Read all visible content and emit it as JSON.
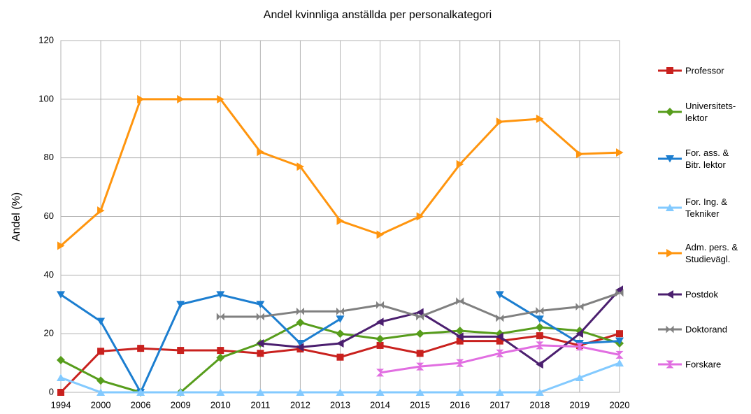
{
  "chart_data": {
    "type": "line",
    "title": "Andel kvinnliga anställda per personalkategori",
    "ylabel": "Andel (%)",
    "categories": [
      "1994",
      "2000",
      "2006",
      "2009",
      "2010",
      "2011",
      "2012",
      "2013",
      "2014",
      "2015",
      "2016",
      "2017",
      "2018",
      "2019",
      "2020"
    ],
    "ylim": [
      0,
      120
    ],
    "yticks": [
      0,
      20,
      40,
      60,
      80,
      100,
      120
    ],
    "grid": true,
    "legend": "right",
    "series": [
      {
        "name": "Professor",
        "color": "#c9211e",
        "marker": "square",
        "values": [
          0,
          14,
          15,
          14.3,
          14.3,
          13.3,
          14.8,
          12,
          16,
          13.3,
          17.5,
          17.5,
          19.3,
          16,
          20
        ]
      },
      {
        "name": "Universitets-\nlektor",
        "color": "#579d1c",
        "marker": "diamond",
        "values": [
          11,
          4,
          0,
          0,
          11.8,
          16.7,
          23.8,
          20,
          18.2,
          20,
          21,
          20,
          22.2,
          21,
          16.7
        ]
      },
      {
        "name": "For. ass. &\nBitr. lektor",
        "color": "#1c7ed0",
        "marker": "down",
        "values": [
          33.3,
          24.2,
          0,
          30,
          33.3,
          30,
          16.7,
          25,
          null,
          null,
          null,
          33.3,
          25,
          16.7,
          17.5
        ]
      },
      {
        "name": "For. Ing. &\nTekniker",
        "color": "#83caff",
        "marker": "up",
        "values": [
          5,
          0,
          0,
          0,
          0,
          0,
          0,
          0,
          0,
          0,
          0,
          0,
          0,
          5,
          10
        ]
      },
      {
        "name": "Adm. pers. &\nStudievägl.",
        "color": "#ff950e",
        "marker": "right",
        "values": [
          50,
          62,
          100,
          100,
          100,
          82,
          77,
          58.5,
          53.8,
          60,
          77.8,
          92.3,
          93.3,
          81.3,
          81.8
        ]
      },
      {
        "name": "Postdok",
        "color": "#4b1f6f",
        "marker": "left",
        "values": [
          null,
          null,
          null,
          null,
          null,
          16.7,
          15.4,
          16.7,
          24,
          27.3,
          19,
          19,
          9.5,
          20,
          35
        ]
      },
      {
        "name": "Doktorand",
        "color": "#808080",
        "marker": "bowtie",
        "values": [
          null,
          null,
          null,
          null,
          25.8,
          25.8,
          27.6,
          27.6,
          29.8,
          25.8,
          31.1,
          25.3,
          27.8,
          29.2,
          33.9
        ]
      },
      {
        "name": "Forskare",
        "color": "#e16ee1",
        "marker": "hourglass",
        "values": [
          null,
          null,
          null,
          null,
          null,
          null,
          null,
          null,
          6.7,
          8.8,
          10,
          13.3,
          16,
          15.6,
          12.8
        ]
      }
    ]
  }
}
